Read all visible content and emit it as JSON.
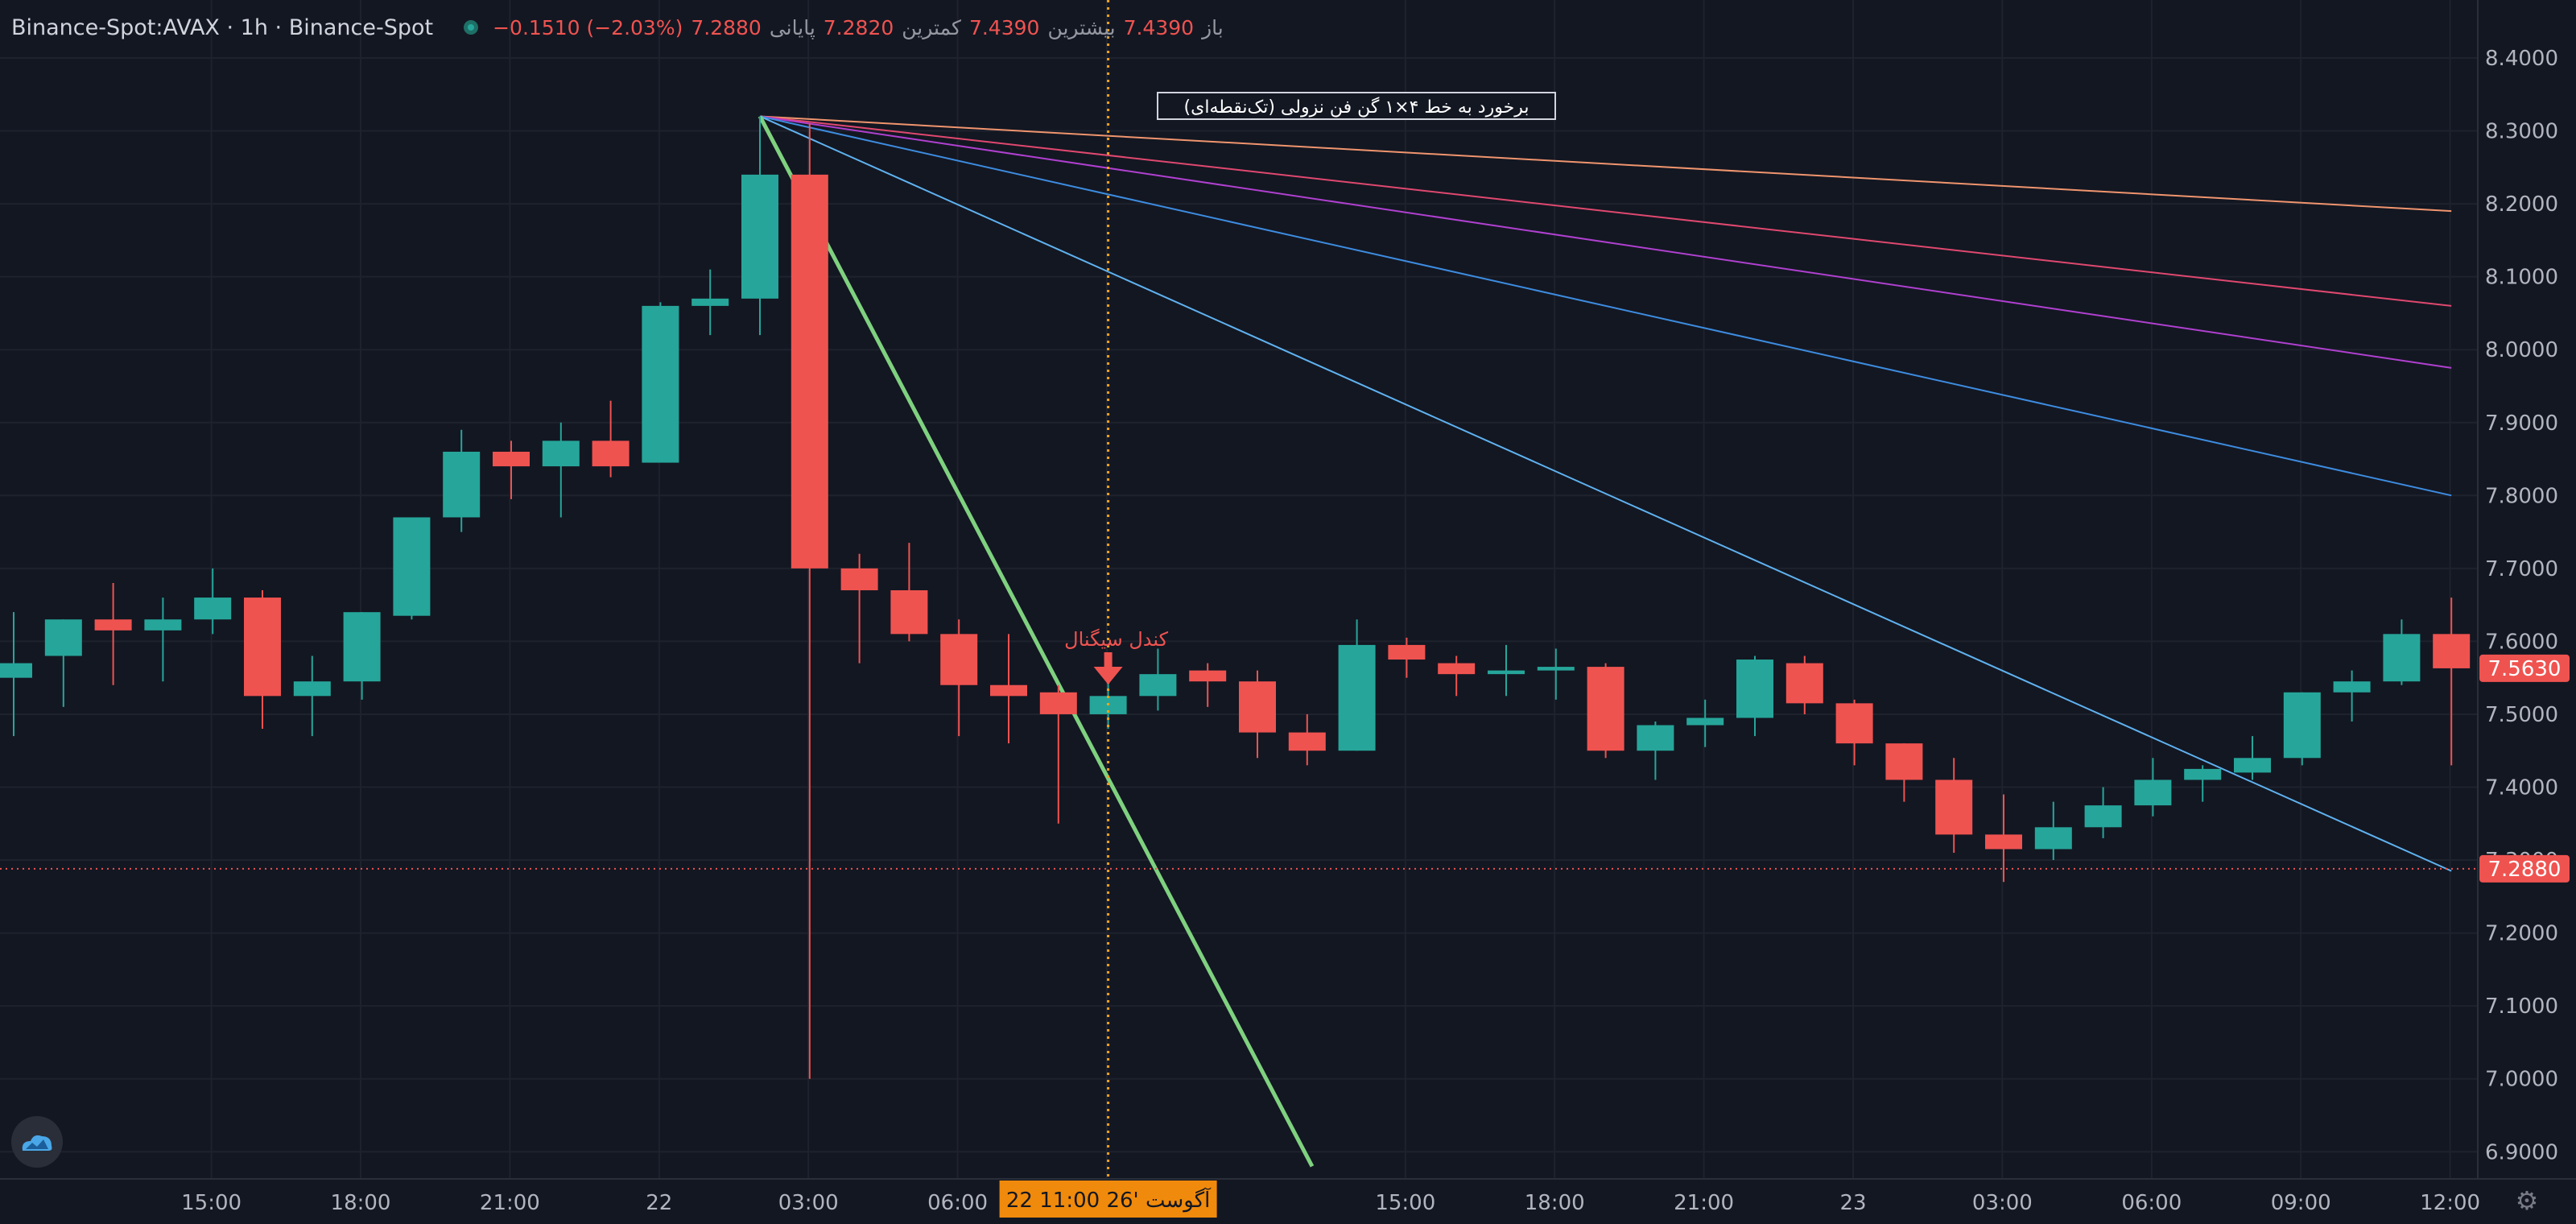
{
  "header": {
    "symbol": "Binance-Spot:AVAX · 1h · Binance-Spot",
    "open_label": "باز",
    "open_value": "7.4390",
    "high_label": "بیشترین",
    "high_value": "7.4390",
    "low_label": "کمترین",
    "low_value": "7.2820",
    "close_label": "پایانی",
    "close_value": "7.2880",
    "change": "−0.1510 (−2.03%)"
  },
  "annotations": {
    "fan_label": "برخورد به خط ۴×۱ گن فن نزولی (تک‌نقطه‌ای)",
    "signal_label": "کندل سیگنال"
  },
  "price_tags": {
    "last": "7.5630",
    "close": "7.2880"
  },
  "crosshair_time": "22 آگوست '26  11:00",
  "colors": {
    "background": "#131722",
    "up": "#26a69a",
    "down": "#ef5350",
    "crosshair": "#f7a21b",
    "gann_1x1": "#7fd17f",
    "gann_fan": [
      "#f0956e",
      "#e0486f",
      "#b040d0",
      "#3d8ce0",
      "#5fb2f0"
    ]
  },
  "icons": {
    "logo": "cloud-logo-icon",
    "settings": "gear-icon"
  },
  "chart_data": {
    "type": "candlestick",
    "interval": "1h",
    "ylim": [
      6.88,
      8.48
    ],
    "y_ticks": [
      "8.4000",
      "8.3000",
      "8.2000",
      "8.1000",
      "8.0000",
      "7.9000",
      "7.8000",
      "7.7000",
      "7.6000",
      "7.5000",
      "7.4000",
      "7.3000",
      "7.2000",
      "7.1000",
      "7.0000",
      "6.9000"
    ],
    "x_ticks": [
      {
        "i": 2,
        "label": "15:00"
      },
      {
        "i": 5,
        "label": "18:00"
      },
      {
        "i": 8,
        "label": "21:00"
      },
      {
        "i": 11,
        "label": "22"
      },
      {
        "i": 14,
        "label": "03:00"
      },
      {
        "i": 17,
        "label": "06:00"
      },
      {
        "i": 20,
        "label": "09:00"
      },
      {
        "i": 26,
        "label": "15:00"
      },
      {
        "i": 29,
        "label": "18:00"
      },
      {
        "i": 32,
        "label": "21:00"
      },
      {
        "i": 35,
        "label": "23"
      },
      {
        "i": 38,
        "label": "03:00"
      },
      {
        "i": 41,
        "label": "06:00"
      },
      {
        "i": 44,
        "label": "09:00"
      },
      {
        "i": 47,
        "label": "12:00"
      }
    ],
    "candles": [
      [
        7.55,
        7.64,
        7.47,
        7.57
      ],
      [
        7.58,
        7.63,
        7.51,
        7.63
      ],
      [
        7.63,
        7.68,
        7.54,
        7.615
      ],
      [
        7.615,
        7.66,
        7.545,
        7.63
      ],
      [
        7.63,
        7.7,
        7.61,
        7.66
      ],
      [
        7.66,
        7.67,
        7.48,
        7.525
      ],
      [
        7.525,
        7.58,
        7.47,
        7.545
      ],
      [
        7.545,
        7.64,
        7.52,
        7.64
      ],
      [
        7.635,
        7.77,
        7.63,
        7.77
      ],
      [
        7.77,
        7.89,
        7.75,
        7.86
      ],
      [
        7.86,
        7.875,
        7.795,
        7.84
      ],
      [
        7.84,
        7.9,
        7.77,
        7.875
      ],
      [
        7.875,
        7.93,
        7.825,
        7.84
      ],
      [
        7.845,
        8.065,
        7.845,
        8.06
      ],
      [
        8.06,
        8.11,
        8.02,
        8.07
      ],
      [
        8.07,
        8.32,
        8.02,
        8.24
      ],
      [
        8.24,
        8.31,
        7.0,
        7.7
      ],
      [
        7.7,
        7.72,
        7.57,
        7.67
      ],
      [
        7.67,
        7.735,
        7.6,
        7.61
      ],
      [
        7.61,
        7.63,
        7.47,
        7.54
      ],
      [
        7.54,
        7.61,
        7.46,
        7.525
      ],
      [
        7.53,
        7.54,
        7.35,
        7.5
      ],
      [
        7.5,
        7.545,
        7.48,
        7.525
      ],
      [
        7.525,
        7.59,
        7.505,
        7.555
      ],
      [
        7.56,
        7.57,
        7.51,
        7.545
      ],
      [
        7.545,
        7.56,
        7.44,
        7.475
      ],
      [
        7.475,
        7.5,
        7.43,
        7.45
      ],
      [
        7.45,
        7.63,
        7.45,
        7.595
      ],
      [
        7.595,
        7.605,
        7.55,
        7.575
      ],
      [
        7.57,
        7.58,
        7.525,
        7.555
      ],
      [
        7.555,
        7.595,
        7.525,
        7.56
      ],
      [
        7.56,
        7.59,
        7.52,
        7.565
      ],
      [
        7.565,
        7.57,
        7.44,
        7.45
      ],
      [
        7.45,
        7.49,
        7.41,
        7.485
      ],
      [
        7.485,
        7.52,
        7.455,
        7.495
      ],
      [
        7.495,
        7.58,
        7.47,
        7.575
      ],
      [
        7.57,
        7.58,
        7.5,
        7.515
      ],
      [
        7.515,
        7.52,
        7.43,
        7.46
      ],
      [
        7.46,
        7.46,
        7.38,
        7.41
      ],
      [
        7.41,
        7.44,
        7.31,
        7.335
      ],
      [
        7.335,
        7.39,
        7.27,
        7.315
      ],
      [
        7.315,
        7.38,
        7.3,
        7.345
      ],
      [
        7.345,
        7.4,
        7.33,
        7.375
      ],
      [
        7.375,
        7.44,
        7.36,
        7.41
      ],
      [
        7.41,
        7.43,
        7.38,
        7.425
      ],
      [
        7.42,
        7.47,
        7.41,
        7.44
      ],
      [
        7.44,
        7.53,
        7.43,
        7.53
      ],
      [
        7.53,
        7.56,
        7.49,
        7.545
      ],
      [
        7.545,
        7.63,
        7.54,
        7.61
      ],
      [
        7.61,
        7.66,
        7.43,
        7.563
      ]
    ],
    "gann_fan": {
      "anchor": {
        "i": 15.0,
        "price": 8.32
      },
      "lines": [
        {
          "end": {
            "i": 49.0,
            "price": 8.19
          },
          "color": "#f0956e",
          "width": 2
        },
        {
          "end": {
            "i": 49.0,
            "price": 8.06
          },
          "color": "#e0486f",
          "width": 2
        },
        {
          "end": {
            "i": 49.0,
            "price": 7.975
          },
          "color": "#b040d0",
          "width": 2
        },
        {
          "end": {
            "i": 49.0,
            "price": 7.8
          },
          "color": "#3d8ce0",
          "width": 2
        },
        {
          "end": {
            "i": 49.0,
            "price": 7.285
          },
          "color": "#5fb2f0",
          "width": 2
        },
        {
          "end": {
            "i": 26.1,
            "price": 6.88
          },
          "color": "#7fd17f",
          "width": 5
        }
      ]
    },
    "crosshair_index": 22,
    "close_price": 7.288,
    "last_price": 7.563,
    "signal_index": 22,
    "grid": true
  }
}
